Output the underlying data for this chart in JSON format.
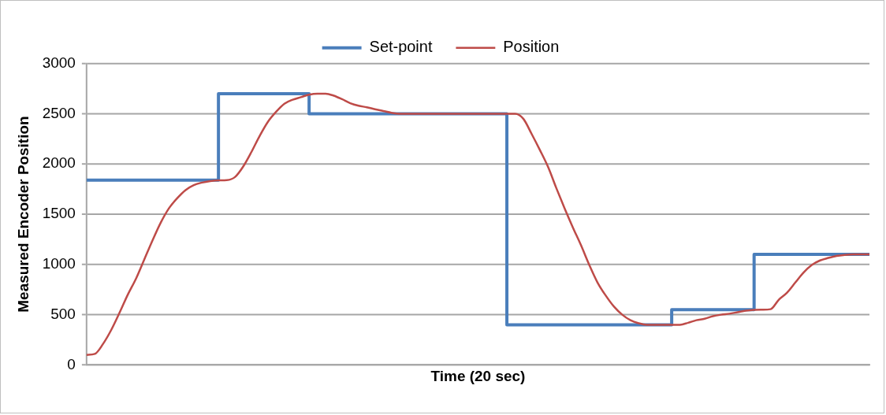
{
  "chart_data": {
    "type": "line",
    "xlabel": "Time (20 sec)",
    "ylabel": "Measured Encoder Position",
    "categories": [
      null,
      null,
      null,
      null,
      null,
      null,
      null,
      null,
      null,
      null,
      null,
      null,
      null,
      null,
      null,
      null,
      null,
      null,
      null,
      null,
      null,
      null,
      null,
      null,
      null,
      null,
      null,
      null,
      null,
      null,
      null,
      null,
      null,
      null,
      null,
      null,
      null,
      null,
      null,
      null,
      null,
      null,
      null,
      null,
      null,
      null,
      null,
      null,
      null,
      null,
      null,
      null,
      null,
      null,
      null,
      null,
      null,
      null,
      null,
      null,
      null,
      null,
      null,
      null,
      null,
      null,
      null,
      null,
      null,
      null,
      null,
      null,
      null,
      null,
      null,
      null,
      null,
      null,
      null,
      null,
      null,
      null,
      null,
      null,
      null,
      null,
      null,
      null,
      null,
      null,
      null,
      null,
      null,
      null,
      null,
      null
    ],
    "series": [
      {
        "name": "Set-point",
        "type": "step",
        "color": "#4a7ebb",
        "values": [
          1840,
          1840,
          1840,
          1840,
          1840,
          1840,
          1840,
          1840,
          1840,
          1840,
          1840,
          1840,
          1840,
          1840,
          1840,
          1840,
          1840,
          2700,
          2700,
          2700,
          2700,
          2700,
          2700,
          2700,
          2700,
          2700,
          2700,
          2700,
          2500,
          2500,
          2500,
          2500,
          2500,
          2500,
          2500,
          2500,
          2500,
          2500,
          2500,
          2500,
          2500,
          2500,
          2500,
          2500,
          2500,
          2500,
          2500,
          2500,
          2500,
          2500,
          2500,
          2500,
          400,
          400,
          400,
          400,
          400,
          400,
          400,
          400,
          400,
          400,
          400,
          400,
          400,
          400,
          400,
          400,
          400,
          400,
          400,
          400,
          550,
          550,
          550,
          550,
          550,
          550,
          550,
          550,
          550,
          550,
          1100,
          1100,
          1100,
          1100,
          1100,
          1100,
          1100,
          1100,
          1100,
          1100,
          1100,
          1100,
          1100,
          1100
        ]
      },
      {
        "name": "Position",
        "type": "line",
        "color": "#be4b48",
        "values": [
          100,
          110,
          210,
          350,
          520,
          700,
          860,
          1050,
          1240,
          1417,
          1560,
          1660,
          1740,
          1790,
          1815,
          1830,
          1838,
          1840,
          1870,
          1975,
          2120,
          2280,
          2420,
          2520,
          2600,
          2640,
          2665,
          2690,
          2700,
          2700,
          2680,
          2645,
          2605,
          2580,
          2565,
          2545,
          2528,
          2510,
          2500,
          2500,
          2500,
          2500,
          2500,
          2500,
          2500,
          2500,
          2500,
          2500,
          2500,
          2500,
          2500,
          2500,
          2500,
          2450,
          2300,
          2140,
          1970,
          1760,
          1560,
          1370,
          1190,
          995,
          820,
          690,
          580,
          500,
          445,
          415,
          400,
          400,
          400,
          400,
          400,
          420,
          445,
          460,
          485,
          500,
          510,
          525,
          540,
          548,
          550,
          555,
          650,
          720,
          820,
          920,
          995,
          1040,
          1065,
          1085,
          1095,
          1100,
          1100,
          1100
        ]
      }
    ],
    "ylim": [
      0,
      3000
    ],
    "yticks": [
      0,
      500,
      1000,
      1500,
      2000,
      2500,
      3000
    ],
    "grid": "y",
    "legend": "top",
    "marker": "none",
    "tick_labels": "y"
  }
}
